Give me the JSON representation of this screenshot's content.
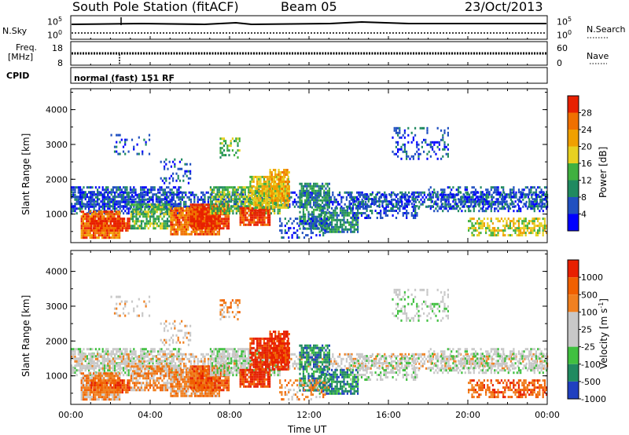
{
  "header": {
    "station": "South Pole Station (fitACF)",
    "beam": "Beam 05",
    "date": "23/Oct/2013"
  },
  "top_panel": {
    "left_label": "N.Sky",
    "left_ticks": [
      "10^5",
      "10^0"
    ],
    "right_label": "N.Search",
    "right_ticks": [
      "10^5",
      "10^0"
    ]
  },
  "freq_panel": {
    "left_label_1": "Freq.",
    "left_label_2": "[MHz]",
    "left_ticks": [
      "18",
      "8"
    ],
    "right_label": "Nave",
    "right_ticks": [
      "60",
      "0"
    ]
  },
  "cpid": {
    "label": "CPID",
    "mode": "normal (fast) 151 RF"
  },
  "chart_data": [
    {
      "type": "heatmap",
      "name": "power",
      "ylabel": "Slant Range [km]",
      "y_ticks": [
        1000,
        2000,
        3000,
        4000
      ],
      "ylim": [
        180,
        4600
      ],
      "colorbar_label": "Power [dB]",
      "colorbar_ticks": [
        "28",
        "24",
        "20",
        "16",
        "12",
        "8",
        "4"
      ],
      "colors": [
        "#0000ff",
        "#2050c0",
        "#208a60",
        "#40b040",
        "#e8d020",
        "#f0a000",
        "#f07000",
        "#e82000"
      ]
    },
    {
      "type": "heatmap",
      "name": "velocity",
      "ylabel": "Slant Range [km]",
      "y_ticks": [
        1000,
        2000,
        3000,
        4000
      ],
      "ylim": [
        180,
        4600
      ],
      "colorbar_label": "Velocity [m s^-1]",
      "colorbar_ticks": [
        "1000",
        "500",
        "100",
        "25",
        "-25",
        "-100",
        "-500",
        "-1000"
      ],
      "colors": [
        "#2040c0",
        "#208a60",
        "#40c040",
        "#c8c8c8",
        "#c8c8c8",
        "#f08020",
        "#f06000",
        "#e82000"
      ]
    }
  ],
  "x_axis": {
    "label": "Time UT",
    "ticks": [
      "00:00",
      "04:00",
      "08:00",
      "12:00",
      "16:00",
      "20:00",
      "00:00"
    ]
  }
}
